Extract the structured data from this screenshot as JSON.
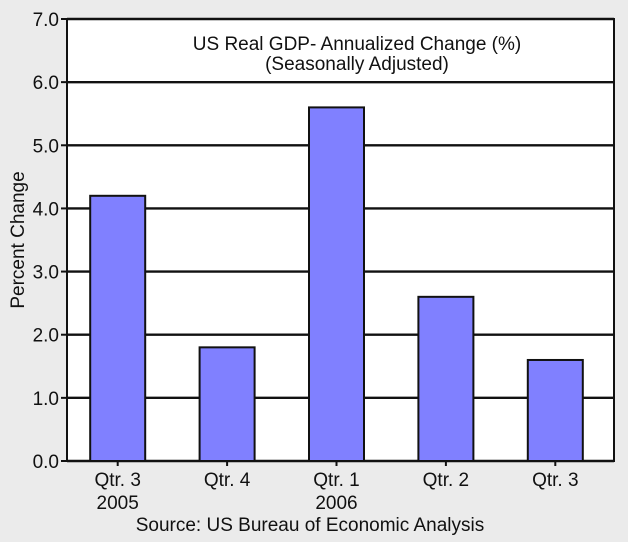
{
  "chart_data": {
    "type": "bar",
    "title": "US Real GDP- Annualized Change (%)",
    "subtitle": "(Seasonally Adjusted)",
    "ylabel": "Percent Change",
    "source": "Source: US Bureau of Economic Analysis",
    "categories": [
      "Qtr. 3",
      "Qtr. 4",
      "Qtr. 1",
      "Qtr. 2",
      "Qtr. 3"
    ],
    "year_labels": [
      "2005",
      "",
      "2006",
      "",
      ""
    ],
    "values": [
      4.2,
      1.8,
      5.6,
      2.6,
      1.6
    ],
    "ylim": [
      0,
      7
    ],
    "yticks": [
      "0.0",
      "1.0",
      "2.0",
      "3.0",
      "4.0",
      "5.0",
      "6.0",
      "7.0"
    ],
    "grid": true,
    "bar_color": "#8080ff",
    "plot_background": "#ffffff",
    "page_background": "#ebebeb"
  }
}
